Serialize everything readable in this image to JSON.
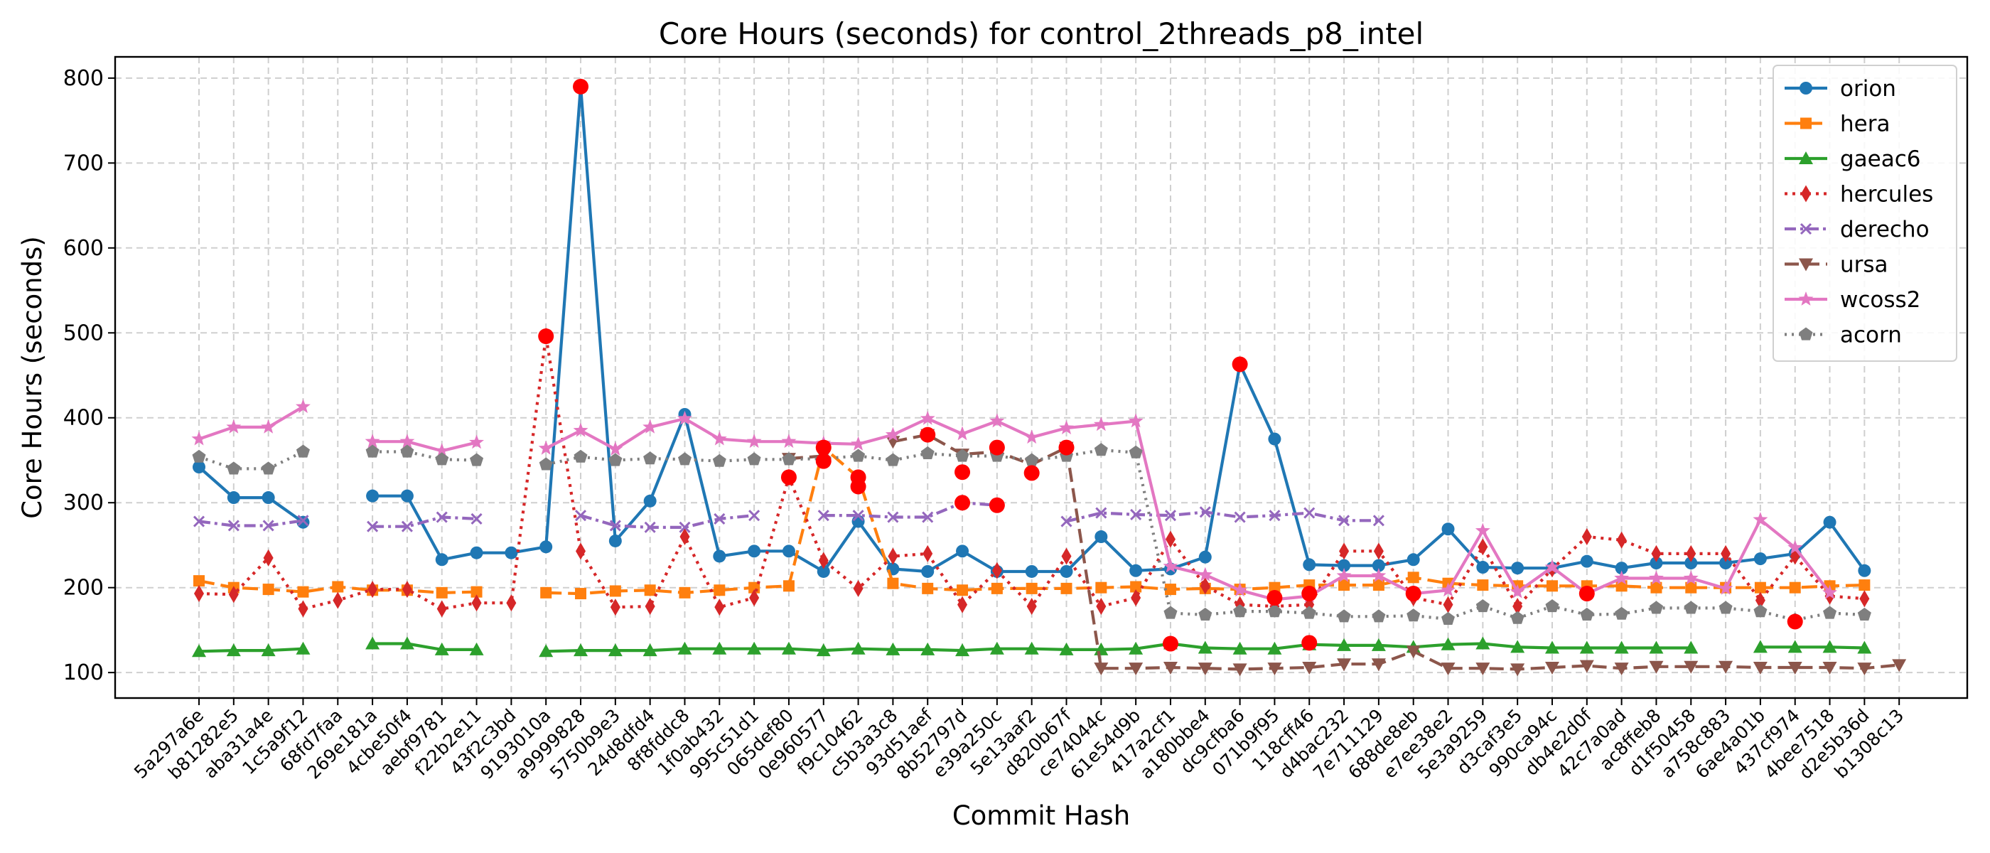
{
  "chart_data": {
    "type": "line",
    "title": "Core Hours (seconds) for control_2threads_p8_intel",
    "xlabel": "Commit Hash",
    "ylabel": "Core Hours (seconds)",
    "ylim": [
      70,
      825
    ],
    "yticks": [
      100,
      200,
      300,
      400,
      500,
      600,
      700,
      800
    ],
    "grid": true,
    "legend_position": "top-right",
    "outlier_color": "#ff0000",
    "categories": [
      "5a297a6e",
      "b81282e5",
      "aba31a4e",
      "1c5a9f12",
      "68fd7faa",
      "269e181a",
      "4cbe50f4",
      "aebf9781",
      "f22b2e11",
      "43f2c3bd",
      "9193010a",
      "a9999828",
      "5750b9e3",
      "24d8dfd4",
      "8f8fddc8",
      "1f0ab432",
      "995c51d1",
      "065def80",
      "0e960577",
      "f9c10462",
      "c5b3a3c8",
      "93d51aef",
      "8b52797d",
      "e39a250c",
      "5e13aaf2",
      "d820b67f",
      "ce74044c",
      "61e54d9b",
      "417a2cf1",
      "a180bbe4",
      "dc9cfba6",
      "071b9f95",
      "118cff46",
      "d4bac232",
      "7e711129",
      "688de8eb",
      "e7ee38e2",
      "5e3a9259",
      "d3caf3e5",
      "990ca94c",
      "db4e2d0f",
      "42c7a0ad",
      "ac8ffeb8",
      "d1f50458",
      "a758c883",
      "6ae4a01b",
      "437cf974",
      "4bee7518",
      "d2e5b36d",
      "b1308c13"
    ],
    "series": [
      {
        "name": "orion",
        "color": "#1f77b4",
        "dash": "",
        "marker": "circle",
        "values": [
          342,
          306,
          306,
          277,
          null,
          308,
          308,
          233,
          241,
          241,
          248,
          790,
          255,
          302,
          404,
          237,
          243,
          243,
          219,
          278,
          222,
          219,
          243,
          219,
          219,
          219,
          260,
          220,
          222,
          236,
          463,
          375,
          227,
          226,
          226,
          233,
          269,
          224,
          223,
          223,
          231,
          223,
          229,
          229,
          229,
          234,
          240,
          277,
          220,
          null
        ]
      },
      {
        "name": "hera",
        "color": "#ff7f0e",
        "dash": "22 9",
        "marker": "square",
        "values": [
          208,
          200,
          198,
          195,
          201,
          197,
          197,
          194,
          195,
          null,
          194,
          193,
          196,
          197,
          194,
          197,
          200,
          202,
          365,
          330,
          205,
          199,
          197,
          199,
          199,
          199,
          200,
          201,
          198,
          199,
          198,
          200,
          203,
          203,
          203,
          212,
          205,
          203,
          202,
          202,
          202,
          202,
          200,
          200,
          200,
          200,
          200,
          202,
          203,
          null
        ]
      },
      {
        "name": "gaeac6",
        "color": "#2ca02c",
        "dash": "",
        "marker": "triangle-up",
        "values": [
          125,
          126,
          126,
          128,
          null,
          134,
          134,
          127,
          127,
          null,
          125,
          126,
          126,
          126,
          128,
          128,
          128,
          128,
          126,
          128,
          127,
          127,
          126,
          128,
          128,
          127,
          127,
          128,
          134,
          129,
          128,
          128,
          133,
          132,
          132,
          130,
          133,
          134,
          130,
          129,
          129,
          129,
          129,
          129,
          null,
          130,
          130,
          130,
          129,
          null
        ]
      },
      {
        "name": "hercules",
        "color": "#d62728",
        "dash": "4 7",
        "marker": "thin-diamond",
        "values": [
          193,
          192,
          235,
          175,
          185,
          198,
          198,
          175,
          182,
          182,
          496,
          243,
          177,
          178,
          260,
          177,
          188,
          330,
          232,
          199,
          237,
          240,
          180,
          220,
          178,
          237,
          178,
          188,
          257,
          202,
          180,
          178,
          180,
          243,
          243,
          188,
          180,
          248,
          178,
          222,
          260,
          256,
          240,
          240,
          240,
          185,
          237,
          190,
          187,
          null
        ]
      },
      {
        "name": "derecho",
        "color": "#9467bd",
        "dash": "16 6 4 6",
        "marker": "x",
        "values": [
          278,
          273,
          273,
          279,
          null,
          272,
          272,
          283,
          281,
          null,
          null,
          285,
          273,
          271,
          271,
          281,
          285,
          null,
          285,
          285,
          283,
          283,
          300,
          297,
          null,
          278,
          288,
          286,
          285,
          289,
          283,
          285,
          288,
          279,
          279,
          null,
          null,
          null,
          null,
          null,
          null,
          null,
          null,
          null,
          null,
          null,
          null,
          null,
          null,
          null
        ]
      },
      {
        "name": "ursa",
        "color": "#8c564b",
        "dash": "20 9",
        "marker": "triangle-down",
        "values": [
          null,
          null,
          null,
          null,
          null,
          null,
          null,
          null,
          null,
          null,
          null,
          null,
          null,
          null,
          null,
          null,
          null,
          352,
          355,
          null,
          372,
          380,
          357,
          360,
          345,
          365,
          105,
          105,
          106,
          105,
          104,
          105,
          106,
          110,
          110,
          125,
          105,
          105,
          104,
          106,
          108,
          105,
          107,
          107,
          107,
          106,
          106,
          106,
          105,
          109
        ]
      },
      {
        "name": "wcoss2",
        "color": "#e377c2",
        "dash": "",
        "marker": "star",
        "values": [
          375,
          389,
          389,
          413,
          null,
          372,
          372,
          361,
          371,
          null,
          364,
          385,
          363,
          389,
          399,
          375,
          372,
          372,
          370,
          369,
          380,
          399,
          381,
          396,
          377,
          388,
          392,
          396,
          225,
          215,
          197,
          186,
          190,
          214,
          214,
          193,
          197,
          267,
          195,
          224,
          193,
          211,
          211,
          211,
          199,
          280,
          247,
          194,
          null,
          null
        ]
      },
      {
        "name": "acorn",
        "color": "#7f7f7f",
        "dash": "3 7",
        "marker": "pentagon",
        "values": [
          354,
          340,
          340,
          360,
          null,
          360,
          360,
          351,
          350,
          null,
          345,
          354,
          350,
          352,
          351,
          349,
          351,
          351,
          352,
          355,
          350,
          358,
          355,
          355,
          350,
          355,
          362,
          359,
          170,
          168,
          172,
          172,
          170,
          166,
          166,
          167,
          163,
          178,
          164,
          178,
          168,
          169,
          176,
          176,
          176,
          172,
          162,
          170,
          168,
          null
        ]
      }
    ],
    "outlier_points": [
      {
        "category": "9193010a",
        "value": 496
      },
      {
        "category": "a9999828",
        "value": 790
      },
      {
        "category": "065def80",
        "value": 330
      },
      {
        "category": "0e960577",
        "value": 365
      },
      {
        "category": "0e960577",
        "value": 349
      },
      {
        "category": "f9c10462",
        "value": 330
      },
      {
        "category": "f9c10462",
        "value": 319
      },
      {
        "category": "93d51aef",
        "value": 380
      },
      {
        "category": "8b52797d",
        "value": 336
      },
      {
        "category": "8b52797d",
        "value": 300
      },
      {
        "category": "e39a250c",
        "value": 365
      },
      {
        "category": "e39a250c",
        "value": 297
      },
      {
        "category": "5e13aaf2",
        "value": 335
      },
      {
        "category": "d820b67f",
        "value": 365
      },
      {
        "category": "417a2cf1",
        "value": 134
      },
      {
        "category": "dc9cfba6",
        "value": 463
      },
      {
        "category": "071b9f95",
        "value": 188
      },
      {
        "category": "118cff46",
        "value": 193
      },
      {
        "category": "118cff46",
        "value": 135
      },
      {
        "category": "688de8eb",
        "value": 193
      },
      {
        "category": "db4e2d0f",
        "value": 193
      },
      {
        "category": "437cf974",
        "value": 160
      }
    ]
  }
}
